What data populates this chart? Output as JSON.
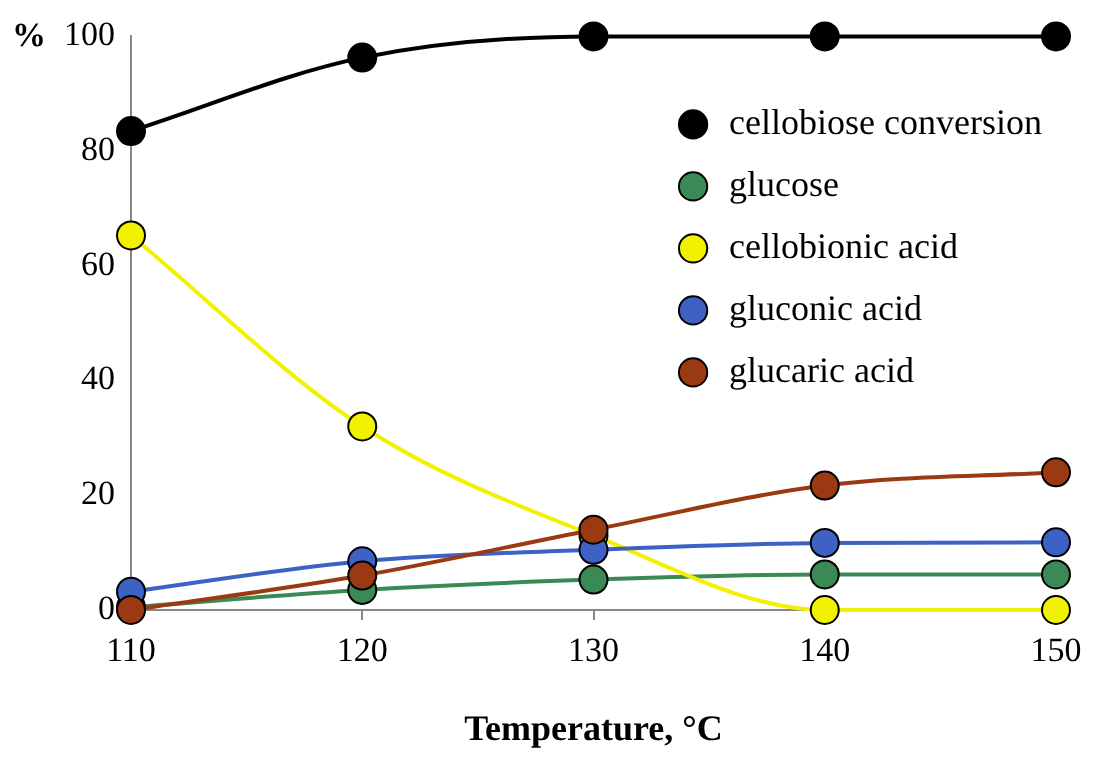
{
  "chart_data": {
    "type": "line",
    "xlabel": "Temperature, °C",
    "ylabel": "%",
    "x": [
      110,
      120,
      130,
      140,
      150
    ],
    "series": [
      {
        "name": "cellobiose conversion",
        "color": "#000000",
        "values": [
          83.5,
          96.3,
          100,
          100,
          100
        ]
      },
      {
        "name": "glucose",
        "color": "#3b8a55",
        "values": [
          0.5,
          3.5,
          5.3,
          6.2,
          6.2
        ]
      },
      {
        "name": "cellobionic acid",
        "color": "#f2f200",
        "values": [
          65.3,
          32,
          13,
          0,
          0
        ]
      },
      {
        "name": "gluconic acid",
        "color": "#3d62c4",
        "values": [
          3.2,
          8.5,
          10.5,
          11.7,
          11.8
        ]
      },
      {
        "name": "glucaric acid",
        "color": "#9b3a12",
        "values": [
          0,
          6,
          14,
          21.7,
          24
        ]
      }
    ],
    "xlim": [
      110,
      150
    ],
    "xticks": [
      110,
      120,
      130,
      140,
      150
    ],
    "ylim": [
      0,
      100
    ],
    "yticks": [
      0,
      20,
      40,
      60,
      80,
      100
    ],
    "grid": false,
    "legend": "top right",
    "marker": "circle",
    "line_style": "solid"
  }
}
